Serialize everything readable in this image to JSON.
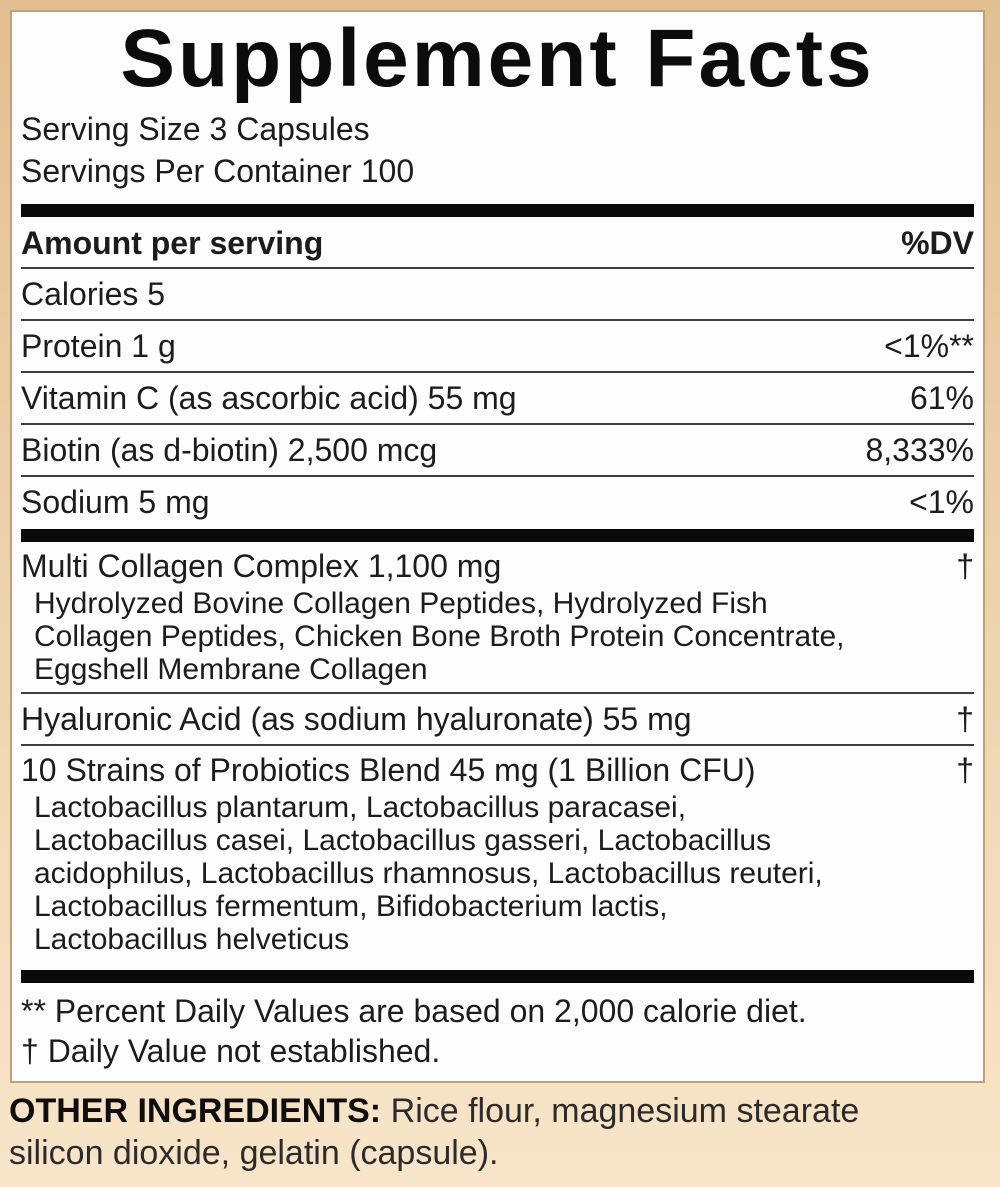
{
  "label": {
    "title": "Supplement Facts",
    "serving_size": "Serving Size 3 Capsules",
    "servings_per_container": "Servings Per Container 100",
    "header": {
      "amount": "Amount per serving",
      "dv": "%DV"
    },
    "rows": [
      {
        "name": "Calories 5",
        "dv": ""
      },
      {
        "name": "Protein 1 g",
        "dv": "<1%**"
      },
      {
        "name": "Vitamin C (as ascorbic acid) 55 mg",
        "dv": "61%"
      },
      {
        "name": "Biotin (as d-biotin) 2,500 mcg",
        "dv": "8,333%"
      },
      {
        "name": "Sodium 5 mg",
        "dv": "<1%"
      }
    ],
    "blends": [
      {
        "name": "Multi Collagen Complex 1,100 mg",
        "dv": "†",
        "sub_lines": [
          "Hydrolyzed Bovine Collagen Peptides, Hydrolyzed Fish",
          "Collagen Peptides, Chicken Bone Broth Protein Concentrate,",
          "Eggshell Membrane Collagen"
        ]
      },
      {
        "name": "Hyaluronic Acid (as sodium hyaluronate) 55 mg",
        "dv": "†",
        "sub_lines": []
      },
      {
        "name": "10 Strains of Probiotics Blend 45 mg (1 Billion CFU)",
        "dv": "†",
        "sub_lines": [
          "Lactobacillus plantarum, Lactobacillus paracasei,",
          "Lactobacillus casei, Lactobacillus gasseri, Lactobacillus",
          "acidophilus, Lactobacillus rhamnosus, Lactobacillus reuteri,",
          "Lactobacillus fermentum, Bifidobacterium lactis,",
          "Lactobacillus helveticus"
        ]
      }
    ],
    "footnotes": [
      "** Percent Daily Values are based on 2,000 calorie diet.",
      "† Daily Value not established."
    ],
    "other_ingredients": {
      "label": "OTHER INGREDIENTS:",
      "line1": "Rice flour, magnesium stearate",
      "line2": "silicon dioxide, gelatin (capsule)."
    },
    "colors": {
      "background_top": "#e2bf92",
      "background_bottom": "#f8e5c9",
      "panel_background": "#fdfdfd",
      "panel_border": "#bfa077",
      "bar": "#0a0a0a",
      "rule": "#3d3d3d",
      "text": "#1c1c1c"
    }
  }
}
